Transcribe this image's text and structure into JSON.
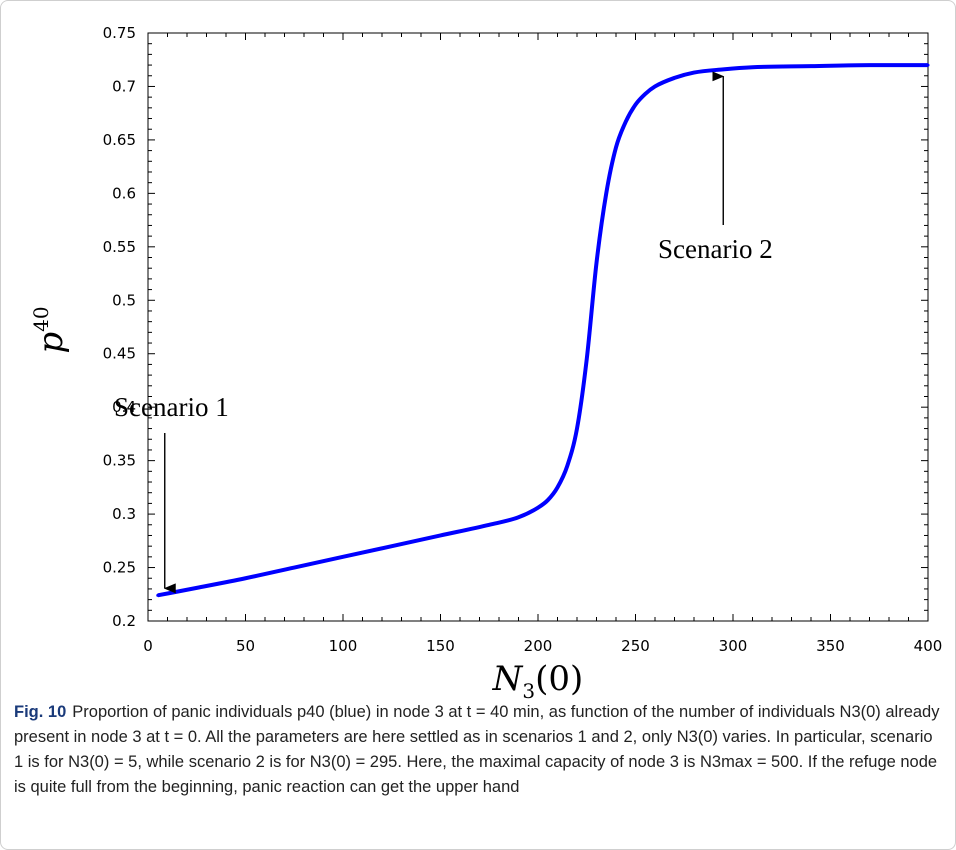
{
  "chart_data": {
    "type": "line",
    "xlabel": "N3(0)",
    "ylabel": "p40",
    "xlim": [
      0,
      400
    ],
    "ylim": [
      0.2,
      0.75
    ],
    "x_ticks": [
      0,
      50,
      100,
      150,
      200,
      250,
      300,
      350,
      400
    ],
    "y_ticks": [
      0.2,
      0.25,
      0.3,
      0.35,
      0.4,
      0.45,
      0.5,
      0.55,
      0.6,
      0.65,
      0.7,
      0.75
    ],
    "x_tick_labels": [
      "0",
      "50",
      "100",
      "150",
      "200",
      "250",
      "300",
      "350",
      "400"
    ],
    "y_tick_labels": [
      "0.2",
      "0.25",
      "0.3",
      "0.35",
      "0.4",
      "0.45",
      "0.5",
      "0.55",
      "0.6",
      "0.65",
      "0.7",
      "0.75"
    ],
    "grid": false,
    "series": [
      {
        "color": "#0000ff",
        "x": [
          5,
          25,
          50,
          75,
          100,
          125,
          150,
          175,
          190,
          200,
          205,
          210,
          215,
          220,
          225,
          230,
          235,
          240,
          245,
          250,
          255,
          260,
          270,
          280,
          295,
          310,
          340,
          370,
          400
        ],
        "y": [
          0.224,
          0.231,
          0.24,
          0.25,
          0.26,
          0.27,
          0.28,
          0.29,
          0.297,
          0.306,
          0.313,
          0.325,
          0.345,
          0.38,
          0.445,
          0.535,
          0.6,
          0.643,
          0.667,
          0.683,
          0.693,
          0.7,
          0.708,
          0.713,
          0.716,
          0.718,
          0.719,
          0.72,
          0.72
        ]
      }
    ],
    "annotations": [
      {
        "text": "Scenario 1",
        "x": 5,
        "y": 0.224
      },
      {
        "text": "Scenario 2",
        "x": 295,
        "y": 0.716
      }
    ]
  },
  "caption": {
    "label": "Fig. 10",
    "text": "Proportion of panic individuals p40 (blue) in node 3 at t = 40 min, as function of the number of individuals N3(0) already present in node 3 at t = 0. All the parameters are here settled as in scenarios 1 and 2, only N3(0) varies. In particular, scenario 1 is for N3(0) = 5, while scenario 2 is for N3(0) = 295. Here, the maximal capacity of node 3 is N3max = 500. If the refuge node is quite full from the beginning, panic reaction can get the upper hand"
  }
}
